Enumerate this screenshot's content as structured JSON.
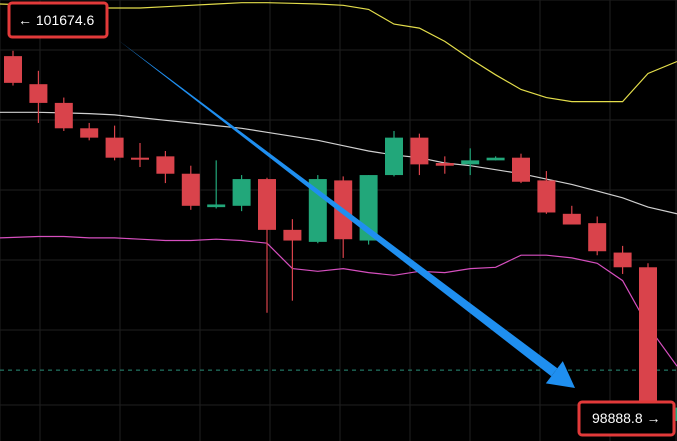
{
  "chart_data": {
    "type": "candlestick",
    "title": "",
    "xlabel": "",
    "ylabel": "",
    "y_range_visible": [
      98700,
      102000
    ],
    "grid": true,
    "colors": {
      "background": "#000000",
      "grid": "#1f1f1f",
      "bullish": "#22a77a",
      "bearish": "#d9434b",
      "bollinger_upper": "#e3dd4b",
      "bollinger_middle": "#d0d0d0",
      "bollinger_lower": "#d64fbf",
      "reference_line": "#2b8f7a",
      "arrow": "#1f8ff0",
      "label_border": "#e23a3a",
      "label_text": "#ffffff"
    },
    "candles": [
      {
        "open": 101580,
        "high": 101620,
        "close": 101380,
        "low": 101360
      },
      {
        "open": 101370,
        "high": 101470,
        "close": 101230,
        "low": 101080
      },
      {
        "open": 101230,
        "high": 101270,
        "close": 101040,
        "low": 101020
      },
      {
        "open": 101040,
        "high": 101080,
        "close": 100970,
        "low": 100950
      },
      {
        "open": 100970,
        "high": 101060,
        "close": 100820,
        "low": 100800
      },
      {
        "open": 100820,
        "high": 100930,
        "close": 100810,
        "low": 100750
      },
      {
        "open": 100830,
        "high": 100870,
        "close": 100700,
        "low": 100630
      },
      {
        "open": 100700,
        "high": 100760,
        "close": 100460,
        "low": 100430
      },
      {
        "open": 100450,
        "high": 100800,
        "close": 100470,
        "low": 100440
      },
      {
        "open": 100460,
        "high": 100690,
        "close": 100660,
        "low": 100420
      },
      {
        "open": 100660,
        "high": 100670,
        "close": 100280,
        "low": 99660
      },
      {
        "open": 100280,
        "high": 100360,
        "close": 100200,
        "low": 99750
      },
      {
        "open": 100190,
        "high": 100690,
        "close": 100660,
        "low": 100180
      },
      {
        "open": 100650,
        "high": 100680,
        "close": 100210,
        "low": 100070
      },
      {
        "open": 100200,
        "high": 100690,
        "close": 100690,
        "low": 100170
      },
      {
        "open": 100690,
        "high": 101020,
        "close": 100970,
        "low": 100680
      },
      {
        "open": 100970,
        "high": 101000,
        "close": 100770,
        "low": 100690
      },
      {
        "open": 100780,
        "high": 100830,
        "close": 100760,
        "low": 100700
      },
      {
        "open": 100770,
        "high": 100890,
        "close": 100800,
        "low": 100690
      },
      {
        "open": 100800,
        "high": 100830,
        "close": 100820,
        "low": 100800
      },
      {
        "open": 100820,
        "high": 100850,
        "close": 100640,
        "low": 100630
      },
      {
        "open": 100650,
        "high": 100720,
        "close": 100410,
        "low": 100400
      },
      {
        "open": 100400,
        "high": 100460,
        "close": 100320,
        "low": 100320
      },
      {
        "open": 100330,
        "high": 100380,
        "close": 100120,
        "low": 100090
      },
      {
        "open": 100110,
        "high": 100160,
        "close": 100000,
        "low": 99950
      },
      {
        "open": 100000,
        "high": 100030,
        "close": 98850,
        "low": 98850
      },
      {
        "open": 98850,
        "high": 98950,
        "close": 98950,
        "low": 98820
      }
    ],
    "bollinger": {
      "upper": [
        101970,
        101960,
        101950,
        101940,
        101940,
        101940,
        101950,
        101960,
        101970,
        101980,
        101980,
        101975,
        101970,
        101960,
        101930,
        101820,
        101790,
        101690,
        101560,
        101440,
        101330,
        101270,
        101240,
        101240,
        101240,
        101450,
        101540
      ],
      "middle": [
        101160,
        101160,
        101155,
        101150,
        101140,
        101120,
        101100,
        101080,
        101060,
        101040,
        101010,
        100980,
        100950,
        100910,
        100870,
        100840,
        100820,
        100780,
        100760,
        100730,
        100700,
        100660,
        100620,
        100570,
        100520,
        100450,
        100400
      ],
      "lower": [
        100220,
        100230,
        100230,
        100220,
        100220,
        100210,
        100200,
        100200,
        100210,
        100200,
        100180,
        99990,
        99970,
        99990,
        99960,
        99940,
        99970,
        99960,
        99990,
        100000,
        100090,
        100090,
        100070,
        100030,
        99900,
        99560,
        99260
      ]
    },
    "reference_level": 99230,
    "annotations": {
      "high_label": "← 101674.6",
      "low_label": "98888.8 →"
    }
  }
}
